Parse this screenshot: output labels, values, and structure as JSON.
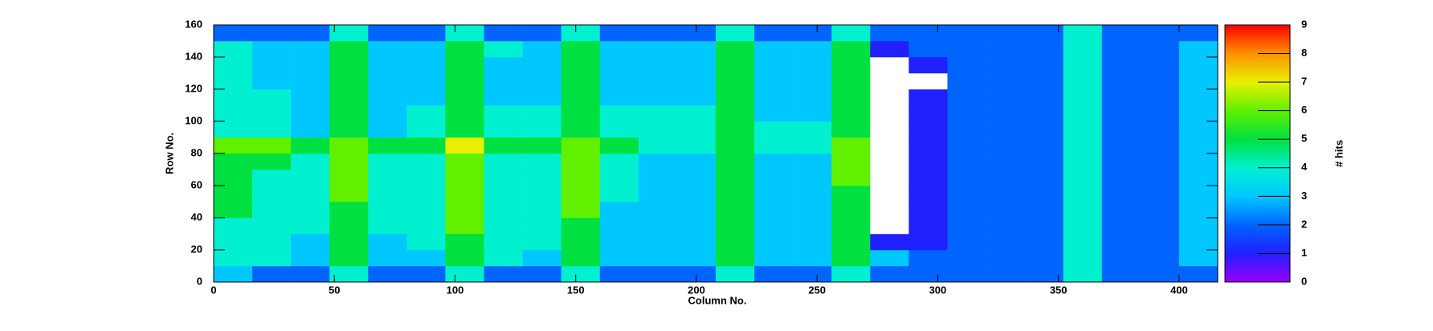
{
  "chart_data": {
    "type": "heatmap",
    "xlabel": "Column No.",
    "ylabel": "Row No.",
    "zlabel": "# hits",
    "xlim": [
      0,
      416
    ],
    "ylim": [
      0,
      160
    ],
    "zlim": [
      0,
      9
    ],
    "xticks": [
      0,
      50,
      100,
      150,
      200,
      250,
      300,
      350,
      400
    ],
    "yticks": [
      0,
      20,
      40,
      60,
      80,
      100,
      120,
      140,
      160
    ],
    "zticks": [
      0,
      1,
      2,
      3,
      4,
      5,
      6,
      7,
      8,
      9
    ],
    "palette": [
      "#9a00ff",
      "#2020ff",
      "#0064ff",
      "#00c8ff",
      "#00f0d0",
      "#00e040",
      "#60f000",
      "#e8f000",
      "#ff9000",
      "#ff0000"
    ],
    "empty_color": "#ffffff",
    "values": [
      [
        3,
        2,
        2,
        4,
        2,
        2,
        4,
        2,
        2,
        4,
        2,
        2,
        2,
        4,
        2,
        2,
        4,
        2,
        2,
        2,
        2,
        2,
        4,
        2,
        2,
        2
      ],
      [
        4,
        4,
        3,
        5,
        3,
        3,
        5,
        4,
        3,
        5,
        3,
        3,
        3,
        5,
        3,
        3,
        5,
        3,
        2,
        2,
        2,
        2,
        4,
        2,
        2,
        3
      ],
      [
        4,
        4,
        3,
        5,
        3,
        4,
        5,
        4,
        4,
        5,
        3,
        3,
        3,
        5,
        3,
        3,
        5,
        1,
        1,
        2,
        2,
        2,
        4,
        2,
        2,
        3
      ],
      [
        4,
        4,
        4,
        5,
        4,
        4,
        6,
        4,
        4,
        5,
        3,
        3,
        3,
        5,
        3,
        3,
        5,
        0,
        1,
        2,
        2,
        2,
        4,
        2,
        2,
        3
      ],
      [
        5,
        4,
        4,
        5,
        4,
        4,
        6,
        4,
        4,
        6,
        3,
        3,
        3,
        5,
        3,
        3,
        5,
        0,
        1,
        2,
        2,
        2,
        4,
        2,
        2,
        3
      ],
      [
        5,
        4,
        4,
        6,
        4,
        4,
        6,
        4,
        4,
        6,
        4,
        3,
        3,
        5,
        3,
        3,
        5,
        0,
        1,
        2,
        2,
        2,
        4,
        2,
        2,
        3
      ],
      [
        5,
        4,
        4,
        6,
        4,
        4,
        6,
        4,
        4,
        6,
        4,
        3,
        3,
        5,
        3,
        3,
        6,
        0,
        1,
        2,
        2,
        2,
        4,
        2,
        2,
        3
      ],
      [
        5,
        5,
        4,
        6,
        4,
        4,
        6,
        4,
        4,
        6,
        4,
        3,
        3,
        5,
        3,
        3,
        6,
        0,
        1,
        2,
        2,
        2,
        4,
        2,
        2,
        3
      ],
      [
        6,
        6,
        5,
        6,
        5,
        5,
        7,
        5,
        5,
        6,
        5,
        4,
        4,
        5,
        4,
        4,
        6,
        0,
        1,
        2,
        2,
        2,
        4,
        2,
        2,
        3
      ],
      [
        4,
        4,
        3,
        5,
        3,
        4,
        5,
        4,
        4,
        5,
        4,
        4,
        4,
        5,
        4,
        4,
        5,
        0,
        1,
        2,
        2,
        2,
        4,
        2,
        2,
        3
      ],
      [
        4,
        4,
        3,
        5,
        3,
        4,
        5,
        4,
        4,
        5,
        4,
        4,
        4,
        5,
        3,
        3,
        5,
        0,
        1,
        2,
        2,
        2,
        4,
        2,
        2,
        3
      ],
      [
        4,
        4,
        3,
        5,
        3,
        3,
        5,
        3,
        3,
        5,
        3,
        3,
        3,
        5,
        3,
        3,
        5,
        0,
        1,
        2,
        2,
        2,
        4,
        2,
        2,
        3
      ],
      [
        4,
        3,
        3,
        5,
        3,
        3,
        5,
        3,
        3,
        5,
        3,
        3,
        3,
        5,
        3,
        3,
        5,
        0,
        0,
        2,
        2,
        2,
        4,
        2,
        2,
        3
      ],
      [
        4,
        3,
        3,
        5,
        3,
        3,
        5,
        3,
        3,
        5,
        3,
        3,
        3,
        5,
        3,
        3,
        5,
        0,
        1,
        2,
        2,
        2,
        4,
        2,
        2,
        3
      ],
      [
        4,
        3,
        3,
        5,
        3,
        3,
        5,
        4,
        3,
        5,
        3,
        3,
        3,
        5,
        3,
        3,
        5,
        1,
        2,
        2,
        2,
        2,
        4,
        2,
        2,
        3
      ],
      [
        2,
        2,
        2,
        4,
        2,
        2,
        4,
        2,
        2,
        4,
        2,
        2,
        2,
        4,
        2,
        2,
        4,
        2,
        2,
        2,
        2,
        2,
        4,
        2,
        2,
        2
      ]
    ]
  }
}
